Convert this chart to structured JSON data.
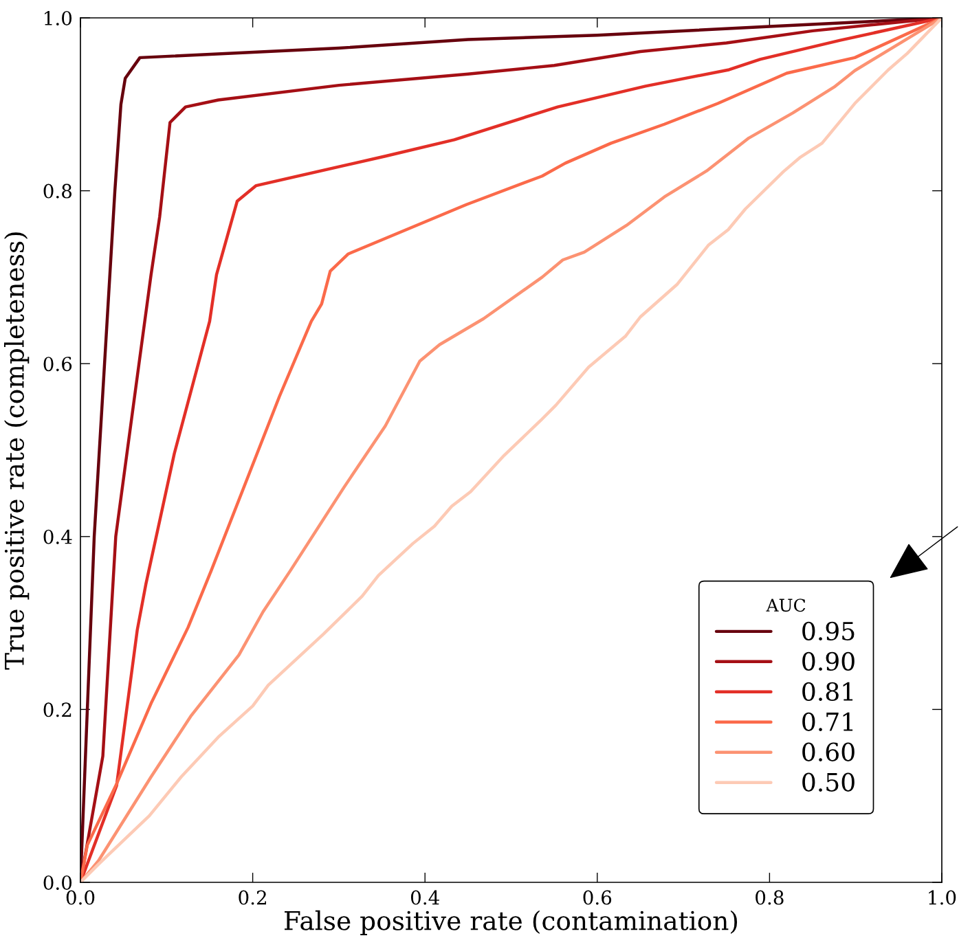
{
  "chart_data": {
    "type": "line",
    "xlabel": "False positive rate (contamination)",
    "ylabel": "True positive rate (completeness)",
    "legend_title": "AUC",
    "legend": "bottom right",
    "grid": false,
    "marker": "none",
    "line_style": "solid",
    "xlim": [
      0,
      1
    ],
    "ylim": [
      0,
      1
    ],
    "xticks": [
      {
        "value": 0,
        "label": "0.0"
      },
      {
        "value": 0.2,
        "label": "0.2"
      },
      {
        "value": 0.4,
        "label": "0.4"
      },
      {
        "value": 0.6,
        "label": "0.6"
      },
      {
        "value": 0.8,
        "label": "0.8"
      },
      {
        "value": 1,
        "label": "1.0"
      }
    ],
    "yticks": [
      {
        "value": 0,
        "label": "0.0"
      },
      {
        "value": 0.2,
        "label": "0.2"
      },
      {
        "value": 0.4,
        "label": "0.4"
      },
      {
        "value": 0.6,
        "label": "0.6"
      },
      {
        "value": 0.8,
        "label": "0.8"
      },
      {
        "value": 1,
        "label": "1.0"
      }
    ],
    "series": [
      {
        "name": "0.95",
        "color": "#67000d",
        "x": [
          0,
          0.008,
          0.016,
          0.028,
          0.04,
          0.047,
          0.052,
          0.069,
          0.3,
          0.45,
          0.6,
          0.8,
          1
        ],
        "values": [
          0,
          0.2,
          0.4,
          0.6,
          0.8,
          0.9,
          0.93,
          0.954,
          0.965,
          0.975,
          0.98,
          0.99,
          1
        ]
      },
      {
        "name": "0.90",
        "color": "#a50f15",
        "x": [
          0,
          0.026,
          0.041,
          0.068,
          0.082,
          0.092,
          0.104,
          0.122,
          0.16,
          0.3,
          0.45,
          0.55,
          0.65,
          0.75,
          0.85,
          1
        ],
        "values": [
          0,
          0.146,
          0.4,
          0.6,
          0.703,
          0.77,
          0.879,
          0.897,
          0.905,
          0.922,
          0.935,
          0.945,
          0.961,
          0.971,
          0.985,
          1
        ]
      },
      {
        "name": "0.81",
        "color": "#e32f27",
        "x": [
          0,
          0.042,
          0.066,
          0.076,
          0.109,
          0.15,
          0.158,
          0.182,
          0.204,
          0.354,
          0.434,
          0.554,
          0.656,
          0.753,
          0.789,
          0.882,
          1
        ],
        "values": [
          0,
          0.112,
          0.292,
          0.345,
          0.496,
          0.649,
          0.703,
          0.788,
          0.806,
          0.84,
          0.859,
          0.897,
          0.921,
          0.94,
          0.952,
          0.974,
          1
        ]
      },
      {
        "name": "0.71",
        "color": "#fb6a4a",
        "x": [
          0,
          0.008,
          0.042,
          0.082,
          0.125,
          0.152,
          0.231,
          0.268,
          0.28,
          0.29,
          0.311,
          0.448,
          0.536,
          0.563,
          0.616,
          0.678,
          0.74,
          0.82,
          0.899,
          1
        ],
        "values": [
          0,
          0.043,
          0.114,
          0.207,
          0.295,
          0.361,
          0.562,
          0.649,
          0.669,
          0.707,
          0.727,
          0.784,
          0.817,
          0.832,
          0.855,
          0.877,
          0.901,
          0.936,
          0.954,
          1
        ]
      },
      {
        "name": "0.60",
        "color": "#fc9272",
        "x": [
          0,
          0.021,
          0.082,
          0.128,
          0.184,
          0.212,
          0.244,
          0.306,
          0.354,
          0.394,
          0.417,
          0.468,
          0.536,
          0.56,
          0.585,
          0.634,
          0.678,
          0.727,
          0.776,
          0.827,
          0.875,
          0.899,
          1
        ],
        "values": [
          0,
          0.025,
          0.122,
          0.192,
          0.263,
          0.313,
          0.361,
          0.457,
          0.528,
          0.603,
          0.622,
          0.652,
          0.7,
          0.72,
          0.729,
          0.76,
          0.793,
          0.823,
          0.861,
          0.89,
          0.92,
          0.939,
          1
        ]
      },
      {
        "name": "0.50",
        "color": "#fdcab5",
        "x": [
          0,
          0.021,
          0.08,
          0.117,
          0.16,
          0.2,
          0.218,
          0.282,
          0.327,
          0.346,
          0.386,
          0.411,
          0.431,
          0.453,
          0.492,
          0.534,
          0.552,
          0.59,
          0.633,
          0.65,
          0.693,
          0.729,
          0.752,
          0.772,
          0.816,
          0.836,
          0.861,
          0.899,
          0.938,
          0.96,
          1
        ],
        "values": [
          0,
          0.021,
          0.077,
          0.122,
          0.168,
          0.204,
          0.228,
          0.287,
          0.331,
          0.355,
          0.392,
          0.412,
          0.435,
          0.452,
          0.494,
          0.534,
          0.552,
          0.596,
          0.632,
          0.654,
          0.692,
          0.737,
          0.755,
          0.779,
          0.822,
          0.839,
          0.855,
          0.901,
          0.94,
          0.959,
          1
        ]
      }
    ]
  }
}
